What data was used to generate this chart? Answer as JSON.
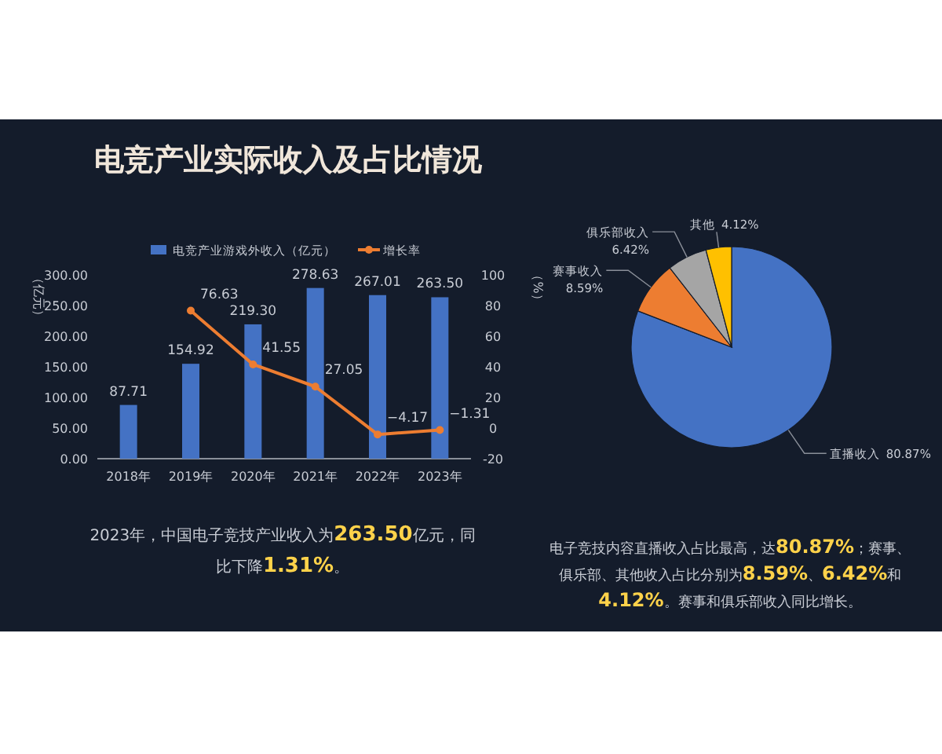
{
  "chart_data": [
    {
      "type": "bar",
      "title": "电竞产业实际收入及占比情况",
      "categories": [
        "2018年",
        "2019年",
        "2020年",
        "2021年",
        "2022年",
        "2023年"
      ],
      "series": [
        {
          "name": "电竞产业游戏外收入（亿元）",
          "color": "#4472c4",
          "values": [
            87.71,
            154.92,
            219.3,
            278.63,
            267.01,
            263.5
          ],
          "value_labels": [
            "87.71",
            "154.92",
            "219.30",
            "278.63",
            "267.01",
            "263.50"
          ]
        },
        {
          "name": "增长率",
          "type": "line",
          "axis": "y2",
          "color": "#ed7d31",
          "values": [
            null,
            76.63,
            41.55,
            27.05,
            -4.17,
            -1.31
          ]
        }
      ],
      "ylabel": "（亿元）",
      "y2label": "（%）",
      "ylim": [
        0,
        300
      ],
      "yticks": [
        {
          "value": 0,
          "label": "0.00"
        },
        {
          "value": 50,
          "label": "50.00"
        },
        {
          "value": 100,
          "label": "100.00"
        },
        {
          "value": 150,
          "label": "150.00"
        },
        {
          "value": 200,
          "label": "200.00"
        },
        {
          "value": 250,
          "label": "250.00"
        },
        {
          "value": 300,
          "label": "300.00"
        }
      ],
      "y2lim": [
        -20,
        100
      ],
      "y2ticks": [
        -20,
        0,
        20,
        40,
        60,
        80,
        100
      ],
      "marker": "circle",
      "data_labels": true,
      "legend": "top",
      "annotations": [
        "2023年，中国电子竞技产业收入为263.50亿元，同比下降1.31%。"
      ]
    },
    {
      "type": "pie",
      "categories": [
        "直播收入",
        "赛事收入",
        "俱乐部收入",
        "其他"
      ],
      "values": [
        80.87,
        8.59,
        6.42,
        4.12
      ],
      "colors": [
        "#4472c4",
        "#ed7d31",
        "#a5a5a5",
        "#ffc000"
      ],
      "value_labels": [
        "80.87%",
        "8.59%",
        "6.42%",
        "4.12%"
      ],
      "annotations": [
        "电子竞技内容直播收入占比最高，达80.87%；赛事、俱乐部、其他收入占比分别为8.59%、6.42%和4.12%。赛事和俱乐部收入同比增长。"
      ]
    }
  ]
}
